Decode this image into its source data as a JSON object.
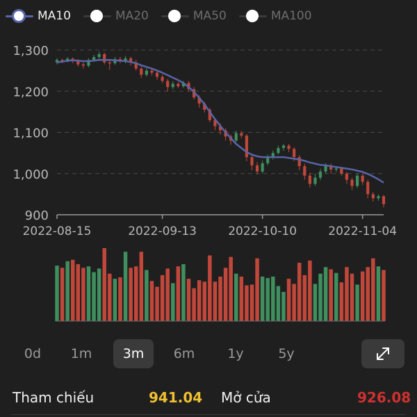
{
  "legend": [
    {
      "label": "MA10",
      "active": true,
      "color": "#5865a8"
    },
    {
      "label": "MA20",
      "active": false,
      "color": "#ffffff"
    },
    {
      "label": "MA50",
      "active": false,
      "color": "#ffffff"
    },
    {
      "label": "MA100",
      "active": false,
      "color": "#ffffff"
    }
  ],
  "colors": {
    "up": "#3f8f5f",
    "down": "#c2473b",
    "ma": "#5865a8",
    "grid": "#4a4a4a",
    "text": "#b8b8b8"
  },
  "range_buttons": [
    "0d",
    "1m",
    "3m",
    "6m",
    "1y",
    "5y"
  ],
  "selected_range": "3m",
  "expand_icon": "expand-arrows-icon",
  "stats": {
    "reference_label": "Tham chiếu",
    "reference_value": "941.04",
    "reference_color": "#f0c030",
    "open_label": "Mở cửa",
    "open_value": "926.08",
    "open_color": "#d03030"
  },
  "chart_data": {
    "type": "candlestick",
    "ylim": [
      900,
      1300
    ],
    "yticks": [
      900,
      1000,
      1100,
      1200,
      1300
    ],
    "ytick_labels": [
      "900",
      "1,000",
      "1,100",
      "1,200",
      "1,300"
    ],
    "xtick_labels": [
      "2022-08-15",
      "2022-09-13",
      "2022-10-10",
      "2022-11-04"
    ],
    "xtick_index": [
      0,
      20,
      39,
      58
    ],
    "candles": [
      [
        1270,
        1276,
        1280,
        1265
      ],
      [
        1276,
        1272,
        1279,
        1268
      ],
      [
        1272,
        1279,
        1283,
        1270
      ],
      [
        1279,
        1273,
        1282,
        1268
      ],
      [
        1273,
        1265,
        1278,
        1260
      ],
      [
        1265,
        1262,
        1270,
        1255
      ],
      [
        1262,
        1276,
        1280,
        1258
      ],
      [
        1276,
        1283,
        1288,
        1272
      ],
      [
        1283,
        1290,
        1296,
        1278
      ],
      [
        1290,
        1270,
        1294,
        1265
      ],
      [
        1270,
        1268,
        1276,
        1252
      ],
      [
        1268,
        1278,
        1283,
        1264
      ],
      [
        1278,
        1272,
        1284,
        1268
      ],
      [
        1272,
        1280,
        1286,
        1268
      ],
      [
        1280,
        1270,
        1284,
        1262
      ],
      [
        1270,
        1255,
        1276,
        1250
      ],
      [
        1255,
        1240,
        1260,
        1232
      ],
      [
        1240,
        1250,
        1256,
        1236
      ],
      [
        1250,
        1245,
        1256,
        1238
      ],
      [
        1245,
        1235,
        1250,
        1228
      ],
      [
        1235,
        1225,
        1240,
        1220
      ],
      [
        1225,
        1210,
        1230,
        1200
      ],
      [
        1210,
        1218,
        1224,
        1205
      ],
      [
        1218,
        1212,
        1222,
        1208
      ],
      [
        1212,
        1220,
        1225,
        1208
      ],
      [
        1220,
        1205,
        1225,
        1200
      ],
      [
        1205,
        1185,
        1210,
        1180
      ],
      [
        1185,
        1170,
        1190,
        1160
      ],
      [
        1170,
        1155,
        1174,
        1148
      ],
      [
        1155,
        1130,
        1160,
        1125
      ],
      [
        1130,
        1115,
        1135,
        1105
      ],
      [
        1115,
        1105,
        1122,
        1095
      ],
      [
        1105,
        1090,
        1110,
        1080
      ],
      [
        1090,
        1080,
        1095,
        1070
      ],
      [
        1080,
        1098,
        1104,
        1076
      ],
      [
        1098,
        1092,
        1104,
        1086
      ],
      [
        1092,
        1040,
        1096,
        1030
      ],
      [
        1040,
        1020,
        1046,
        1008
      ],
      [
        1020,
        1005,
        1028,
        998
      ],
      [
        1005,
        1025,
        1032,
        1000
      ],
      [
        1025,
        1040,
        1046,
        1020
      ],
      [
        1040,
        1050,
        1056,
        1034
      ],
      [
        1050,
        1062,
        1068,
        1046
      ],
      [
        1062,
        1068,
        1072,
        1055
      ],
      [
        1068,
        1060,
        1072,
        1052
      ],
      [
        1060,
        1040,
        1064,
        1030
      ],
      [
        1040,
        1018,
        1045,
        1008
      ],
      [
        1018,
        995,
        1024,
        985
      ],
      [
        995,
        975,
        1002,
        966
      ],
      [
        975,
        990,
        1000,
        970
      ],
      [
        990,
        1005,
        1012,
        984
      ],
      [
        1005,
        1018,
        1025,
        1000
      ],
      [
        1018,
        1010,
        1024,
        1000
      ],
      [
        1010,
        1012,
        1018,
        1004
      ],
      [
        1012,
        1000,
        1016,
        995
      ],
      [
        1000,
        985,
        1004,
        975
      ],
      [
        985,
        970,
        990,
        960
      ],
      [
        970,
        995,
        1000,
        965
      ],
      [
        995,
        980,
        1000,
        972
      ],
      [
        980,
        950,
        985,
        940
      ],
      [
        950,
        940,
        955,
        932
      ],
      [
        940,
        945,
        950,
        934
      ],
      [
        945,
        926,
        948,
        918
      ]
    ],
    "ma10": [
      1270,
      1272,
      1274,
      1275,
      1274,
      1273,
      1273,
      1274,
      1276,
      1276,
      1276,
      1275,
      1274,
      1273,
      1271,
      1268,
      1263,
      1259,
      1255,
      1250,
      1245,
      1239,
      1233,
      1227,
      1220,
      1210,
      1198,
      1184,
      1168,
      1150,
      1132,
      1116,
      1100,
      1086,
      1072,
      1062,
      1052,
      1046,
      1042,
      1040,
      1040,
      1040,
      1040,
      1040,
      1038,
      1036,
      1034,
      1031,
      1027,
      1024,
      1021,
      1020,
      1018,
      1016,
      1014,
      1012,
      1010,
      1007,
      1004,
      999,
      993,
      986,
      978
    ],
    "volume_ratio": [
      0.76,
      0.73,
      0.82,
      0.84,
      0.78,
      0.73,
      0.75,
      0.67,
      0.72,
      1.0,
      0.65,
      0.58,
      0.6,
      0.95,
      0.73,
      0.75,
      0.95,
      0.7,
      0.55,
      0.47,
      0.63,
      0.72,
      0.52,
      0.75,
      0.78,
      0.58,
      0.45,
      0.56,
      0.54,
      0.9,
      0.54,
      0.61,
      0.73,
      0.88,
      0.65,
      0.61,
      0.49,
      0.5,
      0.86,
      0.61,
      0.59,
      0.61,
      0.48,
      0.4,
      0.58,
      0.51,
      0.8,
      0.63,
      0.83,
      0.51,
      0.65,
      0.74,
      0.71,
      0.66,
      0.53,
      0.74,
      0.65,
      0.5,
      0.68,
      0.74,
      0.86,
      0.75,
      0.7
    ]
  }
}
